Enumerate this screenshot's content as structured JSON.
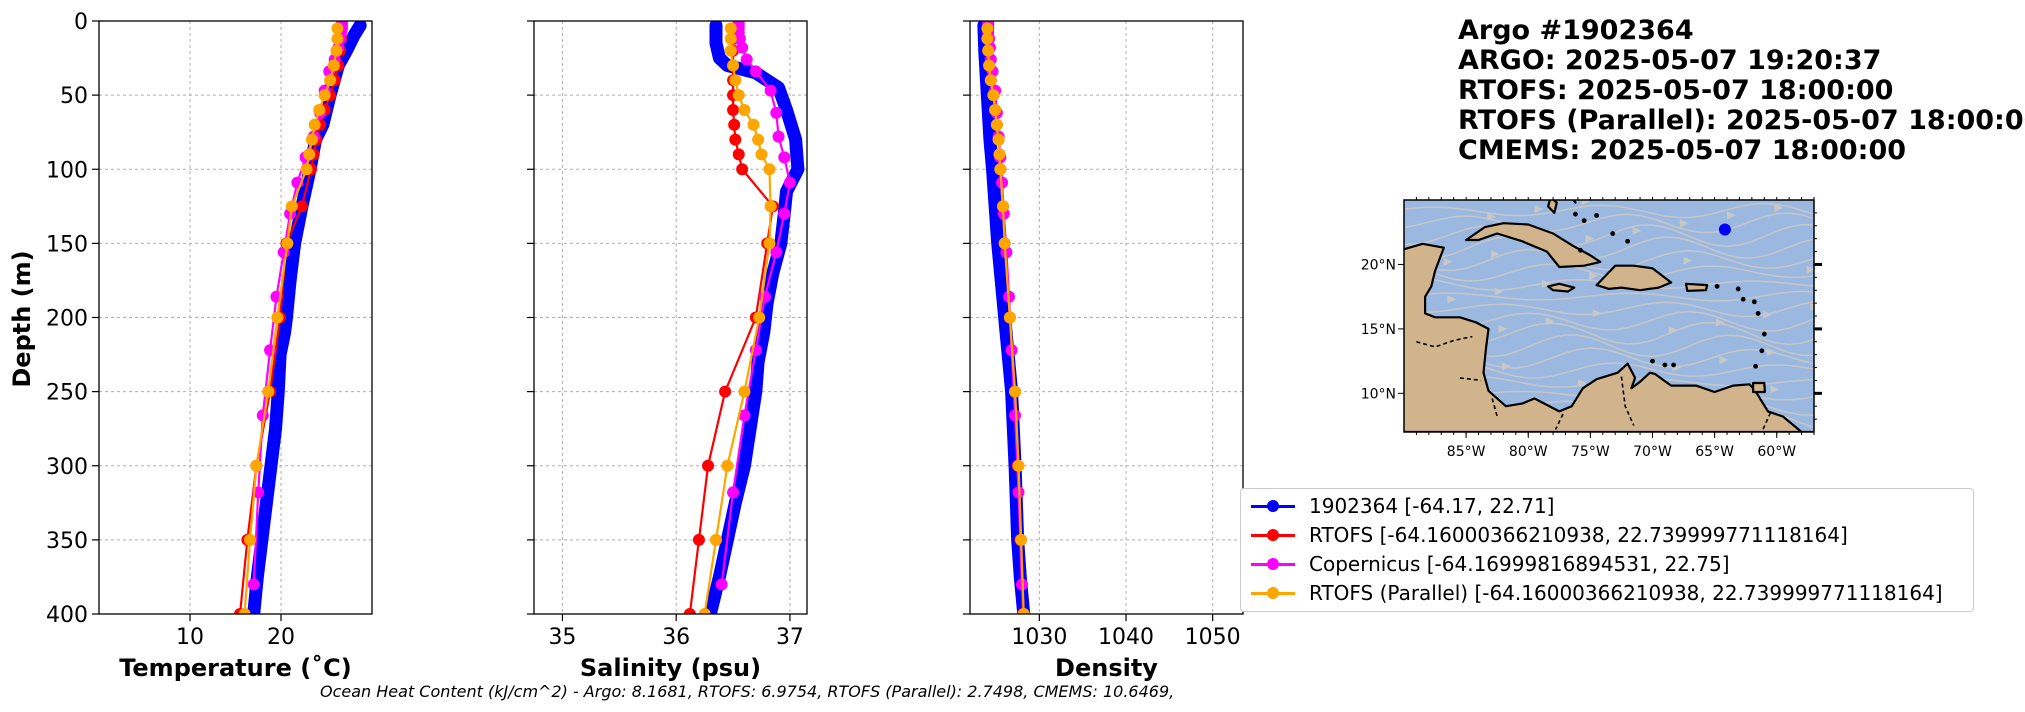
{
  "title_lines": [
    "Argo #1902364",
    "ARGO:  2025-05-07 19:20:37",
    "RTOFS: 2025-05-07 18:00:00",
    "RTOFS (Parallel): 2025-05-07 18:00:00",
    "CMEMS: 2025-05-07 18:00:00"
  ],
  "footer": "Ocean Heat Content (kJ/cm^2) - Argo: 8.1681,  RTOFS: 6.9754,  RTOFS (Parallel): 2.7498,  CMEMS: 10.6469,",
  "legend": [
    {
      "label": "1902364 [-64.17, 22.71]",
      "color": "#0000ff"
    },
    {
      "label": "RTOFS [-64.16000366210938, 22.739999771118164]",
      "color": "#ff0000"
    },
    {
      "label": "Copernicus [-64.16999816894531, 22.75]",
      "color": "#ff00ff"
    },
    {
      "label": "RTOFS (Parallel) [-64.16000366210938, 22.739999771118164]",
      "color": "#ffa500"
    }
  ],
  "chart_data": [
    {
      "type": "line",
      "xlabel": "Temperature (˚C)",
      "ylabel": "Depth (m)",
      "xlim": [
        0,
        30
      ],
      "ylim": [
        400,
        0
      ],
      "xticks": [
        10,
        20
      ],
      "yticks": [
        0,
        50,
        100,
        150,
        200,
        250,
        300,
        350,
        400
      ],
      "grid": true,
      "series": [
        {
          "name": "1902364",
          "color": "#0000ff",
          "dense": true,
          "x": [
            28.7,
            28,
            27.2,
            26.3,
            25.4,
            24.6,
            23.8,
            23.2,
            22.3,
            21.5,
            21,
            20.6,
            20.4,
            19.9,
            19.7,
            19.4,
            18.9,
            18.4,
            17.9,
            17.4,
            17
          ],
          "y": [
            3,
            10,
            20,
            30,
            50,
            70,
            80,
            100,
            125,
            150,
            175,
            200,
            210,
            225,
            250,
            275,
            300,
            325,
            350,
            375,
            400
          ]
        },
        {
          "name": "RTOFS",
          "color": "#ff0000",
          "x": [
            26.6,
            26.6,
            26.5,
            26.3,
            25.9,
            25.4,
            24.8,
            24.3,
            23.9,
            23.6,
            23.3,
            22.3,
            20.6,
            19.9,
            18.8,
            17.3,
            16.3,
            15.5
          ],
          "y": [
            5,
            12,
            20,
            30,
            40,
            50,
            60,
            70,
            80,
            90,
            100,
            125,
            150,
            200,
            250,
            300,
            350,
            400
          ]
        },
        {
          "name": "Copernicus",
          "color": "#ff00ff",
          "x": [
            26.7,
            26.7,
            26.7,
            26.6,
            26.5,
            26.3,
            25.9,
            25.3,
            24.8,
            24.3,
            23.6,
            22.7,
            21.8,
            21,
            20.3,
            19.5,
            18.8,
            18,
            17.5,
            17
          ],
          "y": [
            1,
            3,
            5,
            8,
            12,
            18,
            26,
            34,
            47,
            62,
            78,
            92,
            109,
            130,
            156,
            186,
            222,
            266,
            318,
            380
          ]
        },
        {
          "name": "RTOFS (Parallel)",
          "color": "#ffa500",
          "x": [
            26.2,
            26.2,
            26.1,
            25.8,
            25.4,
            24.8,
            24.2,
            23.7,
            23.4,
            23.1,
            22.8,
            21.2,
            20.7,
            19.6,
            18.6,
            17.3,
            16.6,
            16
          ],
          "y": [
            5,
            12,
            20,
            30,
            40,
            50,
            60,
            70,
            80,
            90,
            100,
            125,
            150,
            200,
            250,
            300,
            350,
            400
          ]
        }
      ]
    },
    {
      "type": "line",
      "xlabel": "Salinity (psu)",
      "xlim": [
        34.75,
        37.15
      ],
      "ylim": [
        400,
        0
      ],
      "xticks": [
        35,
        36,
        37
      ],
      "yticks": [
        0,
        50,
        100,
        150,
        200,
        250,
        300,
        350,
        400
      ],
      "grid": true,
      "series": [
        {
          "name": "1902364",
          "color": "#0000ff",
          "dense": true,
          "x": [
            36.35,
            36.35,
            36.38,
            36.45,
            36.7,
            36.9,
            36.97,
            37.05,
            37.07,
            36.97,
            36.95,
            36.92,
            36.85,
            36.8,
            36.77,
            36.72,
            36.7,
            36.65,
            36.6,
            36.52,
            36.45,
            36.38,
            36.3
          ],
          "y": [
            3,
            15,
            25,
            30,
            35,
            45,
            60,
            80,
            100,
            115,
            130,
            150,
            170,
            190,
            210,
            230,
            250,
            275,
            300,
            325,
            350,
            375,
            400
          ]
        },
        {
          "name": "RTOFS",
          "color": "#ff0000",
          "x": [
            36.5,
            36.5,
            36.5,
            36.5,
            36.5,
            36.5,
            36.5,
            36.51,
            36.52,
            36.55,
            36.58,
            36.85,
            36.8,
            36.7,
            36.43,
            36.28,
            36.2,
            36.12
          ],
          "y": [
            5,
            12,
            20,
            30,
            40,
            50,
            60,
            70,
            80,
            90,
            100,
            125,
            150,
            200,
            250,
            300,
            350,
            400
          ]
        },
        {
          "name": "Copernicus",
          "color": "#ff00ff",
          "x": [
            36.55,
            36.55,
            36.55,
            36.55,
            36.56,
            36.58,
            36.62,
            36.7,
            36.83,
            36.88,
            36.9,
            36.95,
            37,
            36.95,
            36.88,
            36.78,
            36.7,
            36.6,
            36.5,
            36.4
          ],
          "y": [
            1,
            3,
            5,
            8,
            12,
            18,
            26,
            34,
            47,
            62,
            78,
            92,
            109,
            130,
            156,
            186,
            222,
            266,
            318,
            380
          ]
        },
        {
          "name": "RTOFS (Parallel)",
          "color": "#ffa500",
          "x": [
            36.48,
            36.48,
            36.48,
            36.5,
            36.52,
            36.55,
            36.6,
            36.68,
            36.72,
            36.75,
            36.82,
            36.83,
            36.82,
            36.73,
            36.6,
            36.45,
            36.35,
            36.25
          ],
          "y": [
            5,
            12,
            20,
            30,
            40,
            50,
            60,
            70,
            80,
            90,
            100,
            125,
            150,
            200,
            250,
            300,
            350,
            400
          ]
        }
      ]
    },
    {
      "type": "line",
      "xlabel": "Density",
      "xlim": [
        1022,
        1053.5
      ],
      "ylim": [
        400,
        0
      ],
      "xticks": [
        1030,
        1040,
        1050
      ],
      "yticks": [
        0,
        50,
        100,
        150,
        200,
        250,
        300,
        350,
        400
      ],
      "grid": true,
      "series": [
        {
          "name": "1902364",
          "color": "#0000ff",
          "dense": true,
          "x": [
            1023.6,
            1023.7,
            1023.9,
            1024.1,
            1024.3,
            1024.6,
            1024.9,
            1025.2,
            1025.6,
            1026,
            1026.4,
            1026.8,
            1027.2,
            1027.5,
            1027.8,
            1028.2
          ],
          "y": [
            3,
            20,
            40,
            60,
            80,
            100,
            125,
            150,
            175,
            200,
            225,
            250,
            300,
            350,
            375,
            400
          ]
        },
        {
          "name": "RTOFS",
          "color": "#ff0000",
          "x": [
            1024.1,
            1024.1,
            1024.1,
            1024.2,
            1024.4,
            1024.7,
            1024.9,
            1025.1,
            1025.3,
            1025.4,
            1025.5,
            1025.8,
            1026,
            1026.6,
            1027.2,
            1027.5,
            1027.8,
            1028.1
          ],
          "y": [
            5,
            12,
            20,
            30,
            40,
            50,
            60,
            70,
            80,
            90,
            100,
            125,
            150,
            200,
            250,
            300,
            350,
            400
          ]
        },
        {
          "name": "Copernicus",
          "color": "#ff00ff",
          "x": [
            1024.1,
            1024.1,
            1024.1,
            1024.1,
            1024.2,
            1024.3,
            1024.4,
            1024.6,
            1024.9,
            1025.1,
            1025.3,
            1025.5,
            1025.7,
            1025.9,
            1026.2,
            1026.5,
            1026.8,
            1027.2,
            1027.6,
            1028
          ],
          "y": [
            1,
            3,
            5,
            8,
            12,
            18,
            26,
            34,
            47,
            62,
            78,
            92,
            109,
            130,
            156,
            186,
            222,
            266,
            318,
            380
          ]
        },
        {
          "name": "RTOFS (Parallel)",
          "color": "#ffa500",
          "x": [
            1024,
            1024,
            1024.1,
            1024.2,
            1024.4,
            1024.7,
            1024.9,
            1025.1,
            1025.3,
            1025.4,
            1025.5,
            1025.8,
            1026,
            1026.6,
            1027.2,
            1027.6,
            1027.9,
            1028.2
          ],
          "y": [
            5,
            12,
            20,
            30,
            40,
            50,
            60,
            70,
            80,
            90,
            100,
            125,
            150,
            200,
            250,
            300,
            350,
            400
          ]
        }
      ]
    }
  ],
  "map": {
    "lon_range": [
      -90,
      -57
    ],
    "lat_range": [
      7,
      25
    ],
    "lon_ticks": [
      "85°W",
      "80°W",
      "75°W",
      "70°W",
      "65°W",
      "60°W"
    ],
    "lat_ticks": [
      "20°N",
      "15°N",
      "10°N"
    ],
    "float_position": {
      "lon": -64.17,
      "lat": 22.71
    },
    "ocean_color": "#9ab8e0",
    "land_color": "#d2b48c",
    "current_color": "#c8c8c8"
  }
}
